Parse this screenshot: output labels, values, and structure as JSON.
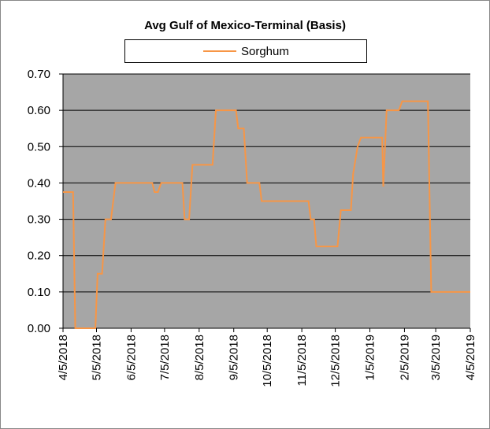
{
  "chart_data": {
    "type": "line",
    "title": "Avg Gulf of Mexico-Terminal (Basis)",
    "x": [
      "4/5/2018",
      "4/14/2018",
      "4/16/2018",
      "5/4/2018",
      "5/6/2018",
      "5/10/2018",
      "5/13/2018",
      "5/18/2018",
      "5/22/2018",
      "6/24/2018",
      "6/26/2018",
      "6/29/2018",
      "7/2/2018",
      "7/21/2018",
      "7/23/2018",
      "7/27/2018",
      "7/30/2018",
      "8/17/2018",
      "8/20/2018",
      "9/7/2018",
      "9/9/2018",
      "9/14/2018",
      "9/17/2018",
      "9/28/2018",
      "9/30/2018",
      "11/11/2018",
      "11/13/2018",
      "11/16/2018",
      "11/18/2018",
      "12/7/2018",
      "12/10/2018",
      "12/19/2018",
      "12/21/2018",
      "12/25/2018",
      "12/28/2018",
      "1/16/2019",
      "1/17/2019",
      "1/20/2019",
      "1/31/2019",
      "2/3/2019",
      "2/26/2019",
      "3/1/2019",
      "4/5/2019"
    ],
    "series": [
      {
        "name": "Sorghum",
        "color": "#f79646",
        "values": [
          0.375,
          0.375,
          0,
          0,
          0.15,
          0.15,
          0.3,
          0.3,
          0.4,
          0.4,
          0.375,
          0.375,
          0.4,
          0.4,
          0.3,
          0.3,
          0.45,
          0.45,
          0.6,
          0.6,
          0.55,
          0.55,
          0.4,
          0.4,
          0.35,
          0.35,
          0.3,
          0.3,
          0.225,
          0.225,
          0.325,
          0.325,
          0.425,
          0.5,
          0.525,
          0.525,
          0.39,
          0.6,
          0.6,
          0.625,
          0.625,
          0.1,
          0.1
        ]
      }
    ],
    "xlim": [
      "4/5/2018",
      "4/5/2019"
    ],
    "xticks": [
      "4/5/2018",
      "5/5/2018",
      "6/5/2018",
      "7/5/2018",
      "8/5/2018",
      "9/5/2018",
      "10/5/2018",
      "11/5/2018",
      "12/5/2018",
      "1/5/2019",
      "2/5/2019",
      "3/5/2019",
      "4/5/2019"
    ],
    "ylim": [
      0,
      0.7
    ],
    "yticks": [
      {
        "value": 0,
        "label": "0.00"
      },
      {
        "value": 0.1,
        "label": "0.10"
      },
      {
        "value": 0.2,
        "label": "0.20"
      },
      {
        "value": 0.3,
        "label": "0.30"
      },
      {
        "value": 0.4,
        "label": "0.40"
      },
      {
        "value": 0.5,
        "label": "0.50"
      },
      {
        "value": 0.6,
        "label": "0.60"
      },
      {
        "value": 0.7,
        "label": "0.70"
      }
    ],
    "grid": true,
    "plot_background": "#a6a6a6"
  }
}
